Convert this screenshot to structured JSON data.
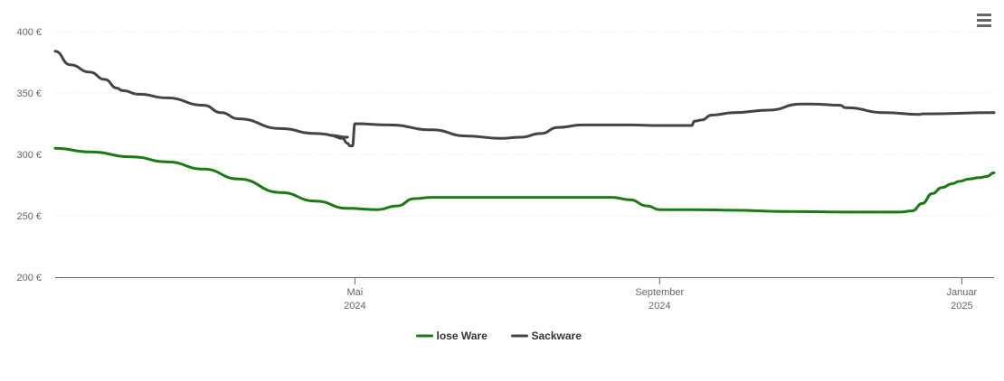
{
  "menu": {
    "icon": "hamburger-menu-icon"
  },
  "chart_data": {
    "type": "line",
    "title": "",
    "xlabel": "",
    "ylabel": "",
    "ylim": [
      200,
      400
    ],
    "y_ticks": [
      200,
      250,
      300,
      350,
      400
    ],
    "y_tick_labels": [
      "200 €",
      "250 €",
      "300 €",
      "350 €",
      "400 €"
    ],
    "grid": true,
    "grid_style": "dotted horizontal",
    "legend_position": "bottom-center",
    "x_range": [
      "2024-01-01",
      "2025-01-14"
    ],
    "x_ticks": [
      {
        "date": "2024-05-01",
        "line1": "Mai",
        "line2": "2024"
      },
      {
        "date": "2024-09-01",
        "line1": "September",
        "line2": "2024"
      },
      {
        "date": "2025-01-01",
        "line1": "Januar",
        "line2": "2025"
      }
    ],
    "series": [
      {
        "name": "lose Ware",
        "color": "#1a7a14",
        "points": [
          [
            "2024-01-01",
            305
          ],
          [
            "2024-01-15",
            302
          ],
          [
            "2024-02-01",
            298
          ],
          [
            "2024-02-15",
            294
          ],
          [
            "2024-03-01",
            288
          ],
          [
            "2024-03-15",
            280
          ],
          [
            "2024-04-01",
            269
          ],
          [
            "2024-04-15",
            262
          ],
          [
            "2024-04-28",
            256
          ],
          [
            "2024-05-10",
            255
          ],
          [
            "2024-05-18",
            258
          ],
          [
            "2024-05-25",
            264
          ],
          [
            "2024-06-01",
            265
          ],
          [
            "2024-07-01",
            265
          ],
          [
            "2024-08-01",
            265
          ],
          [
            "2024-08-13",
            265
          ],
          [
            "2024-08-20",
            263
          ],
          [
            "2024-08-27",
            258
          ],
          [
            "2024-09-01",
            255
          ],
          [
            "2024-09-15",
            255
          ],
          [
            "2024-10-01",
            254.5
          ],
          [
            "2024-10-20",
            253.5
          ],
          [
            "2024-11-15",
            253
          ],
          [
            "2024-12-07",
            253
          ],
          [
            "2024-12-12",
            254
          ],
          [
            "2024-12-16",
            260
          ],
          [
            "2024-12-20",
            268
          ],
          [
            "2024-12-24",
            273
          ],
          [
            "2024-12-28",
            276
          ],
          [
            "2024-12-31",
            278
          ],
          [
            "2025-01-04",
            280
          ],
          [
            "2025-01-08",
            281
          ],
          [
            "2025-01-11",
            282
          ],
          [
            "2025-01-14",
            285
          ]
        ]
      },
      {
        "name": "Sackware",
        "color": "#434348",
        "points": [
          [
            "2024-01-01",
            384
          ],
          [
            "2024-01-07",
            373
          ],
          [
            "2024-01-15",
            367
          ],
          [
            "2024-01-21",
            361
          ],
          [
            "2024-01-26",
            354
          ],
          [
            "2024-01-28",
            352
          ],
          [
            "2024-02-04",
            349
          ],
          [
            "2024-02-15",
            346
          ],
          [
            "2024-03-01",
            340
          ],
          [
            "2024-03-08",
            334
          ],
          [
            "2024-03-15",
            329
          ],
          [
            "2024-04-01",
            321
          ],
          [
            "2024-04-15",
            317
          ],
          [
            "2024-04-28",
            314
          ],
          [
            "2024-04-21",
            315.5
          ],
          [
            "2024-04-26",
            313
          ],
          [
            "2024-04-28",
            309
          ],
          [
            "2024-04-29",
            307
          ],
          [
            "2024-04-30",
            307
          ],
          [
            "2024-05-01",
            325
          ],
          [
            "2024-05-15",
            324
          ],
          [
            "2024-06-01",
            320
          ],
          [
            "2024-06-15",
            315
          ],
          [
            "2024-06-29",
            313
          ],
          [
            "2024-07-07",
            314
          ],
          [
            "2024-07-15",
            317
          ],
          [
            "2024-07-22",
            322
          ],
          [
            "2024-08-01",
            324
          ],
          [
            "2024-08-20",
            324
          ],
          [
            "2024-09-01",
            323.5
          ],
          [
            "2024-09-14",
            323.5
          ],
          [
            "2024-09-15",
            327
          ],
          [
            "2024-09-18",
            328
          ],
          [
            "2024-09-22",
            332
          ],
          [
            "2024-10-01",
            334
          ],
          [
            "2024-10-15",
            336
          ],
          [
            "2024-10-28",
            341
          ],
          [
            "2024-11-01",
            341
          ],
          [
            "2024-11-13",
            340
          ],
          [
            "2024-11-15",
            338
          ],
          [
            "2024-12-01",
            334
          ],
          [
            "2024-12-15",
            332.5
          ],
          [
            "2024-12-16",
            333
          ],
          [
            "2025-01-14",
            334
          ]
        ]
      }
    ]
  }
}
